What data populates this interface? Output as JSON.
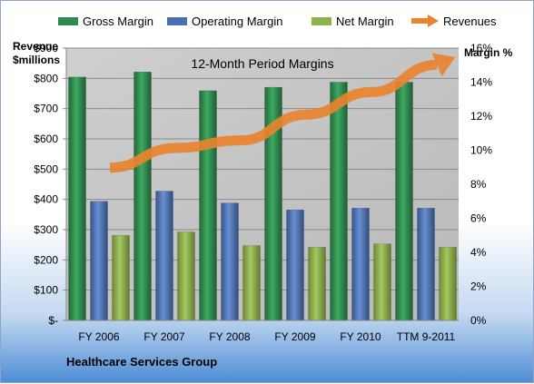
{
  "chart_data": {
    "type": "bar",
    "title": "12-Month Period Margins",
    "ylabel_left": [
      "Revenue",
      "$millions"
    ],
    "ylabel_right": "Margin %",
    "categories": [
      "FY 2006",
      "FY 2007",
      "FY 2008",
      "FY 2009",
      "FY 2010",
      "TTM 9-2011"
    ],
    "y_left_ticks": [
      "$-",
      "$100",
      "$200",
      "$300",
      "$400",
      "$500",
      "$600",
      "$700",
      "$800",
      "$900"
    ],
    "y_left_range": [
      0,
      900
    ],
    "y_right_ticks": [
      "0%",
      "2%",
      "4%",
      "6%",
      "8%",
      "10%",
      "12%",
      "14%",
      "16%"
    ],
    "y_right_range": [
      0,
      16
    ],
    "grid": true,
    "legend_position": "top",
    "series": [
      {
        "name": "Gross Margin",
        "type": "bar",
        "axis": "right",
        "color": "#2e8b4e",
        "values": [
          14.3,
          14.6,
          13.5,
          13.7,
          14.0,
          14.0
        ]
      },
      {
        "name": "Operating Margin",
        "type": "bar",
        "axis": "right",
        "color": "#4a6fb0",
        "values": [
          7.0,
          7.6,
          6.9,
          6.5,
          6.6,
          6.6
        ]
      },
      {
        "name": "Net Margin",
        "type": "bar",
        "axis": "right",
        "color": "#8cb24a",
        "values": [
          5.0,
          5.2,
          4.4,
          4.3,
          4.5,
          4.3
        ]
      },
      {
        "name": "Revenues",
        "type": "line",
        "axis": "left",
        "color": "#e8832f",
        "values": [
          505,
          570,
          595,
          680,
          755,
          845
        ]
      }
    ],
    "company_label": "Healthcare Services Group"
  }
}
